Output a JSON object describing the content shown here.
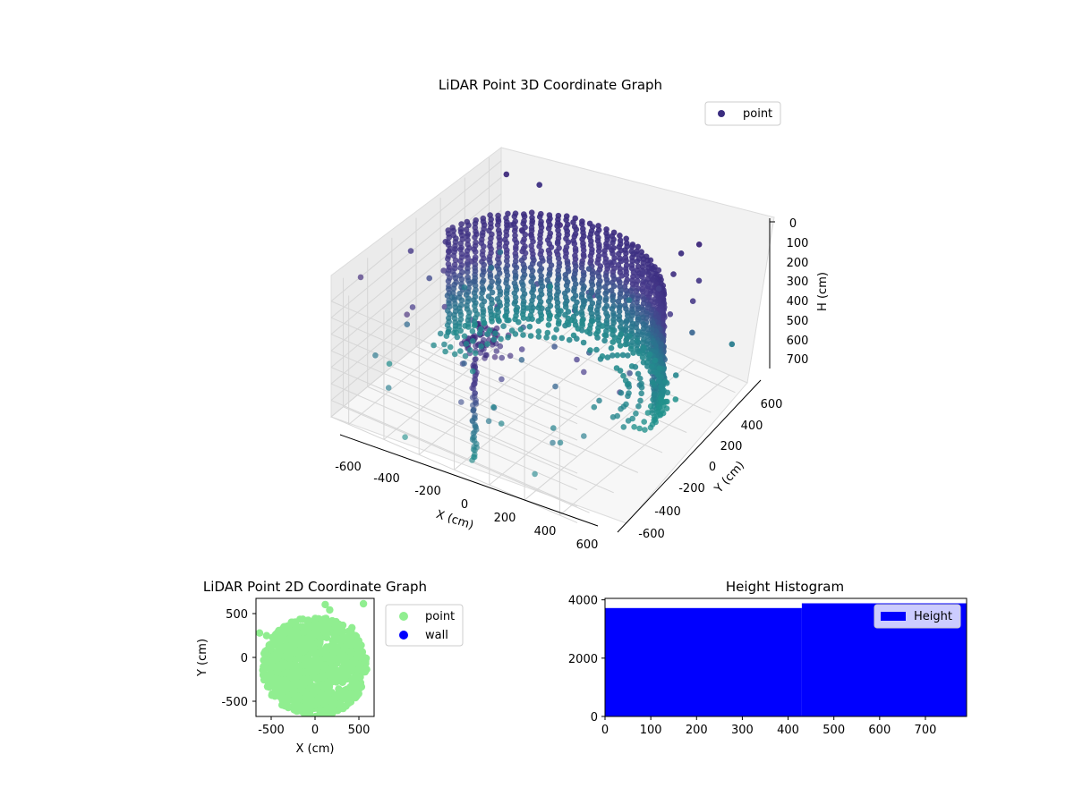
{
  "chart_data": [
    {
      "type": "scatter3d",
      "title": "LiDAR Point 3D Coordinate Graph",
      "xlabel": "X (cm)",
      "ylabel": "Y (cm)",
      "zlabel": "H (cm)",
      "x_ticks": [
        "-600",
        "-400",
        "-200",
        "0",
        "200",
        "400",
        "600"
      ],
      "y_ticks": [
        "-600",
        "-400",
        "-200",
        "0",
        "200",
        "400",
        "600"
      ],
      "z_ticks": [
        "0",
        "100",
        "200",
        "300",
        "400",
        "500",
        "600",
        "700"
      ],
      "xlim": [
        -700,
        700
      ],
      "ylim": [
        -700,
        700
      ],
      "zlim": [
        0,
        780
      ],
      "z_inverted": true,
      "legend": {
        "entries": [
          "point"
        ],
        "position": "top-right"
      },
      "colors": {
        "point": "#3b2d80",
        "colormap": "viridis"
      },
      "grid": true
    },
    {
      "type": "scatter",
      "title": "LiDAR Point 2D Coordinate Graph",
      "xlabel": "X (cm)",
      "ylabel": "Y (cm)",
      "x_ticks": [
        "-500",
        "0",
        "500"
      ],
      "y_ticks": [
        "500",
        "0",
        "-500"
      ],
      "xlim": [
        -680,
        650
      ],
      "ylim": [
        -680,
        650
      ],
      "legend": {
        "entries": [
          "point",
          "wall"
        ],
        "position": "outside-right"
      },
      "series": [
        {
          "name": "point",
          "color": "#90ee90"
        },
        {
          "name": "wall",
          "color": "#0000ff"
        }
      ],
      "grid": false
    },
    {
      "type": "bar",
      "title": "Height Histogram",
      "x_ticks": [
        "0",
        "100",
        "200",
        "300",
        "400",
        "500",
        "600",
        "700"
      ],
      "y_ticks": [
        "0",
        "2000",
        "4000"
      ],
      "xlim": [
        0,
        790
      ],
      "ylim": [
        0,
        4050
      ],
      "bins": [
        {
          "x0": 0,
          "x1": 430,
          "count": 3720
        },
        {
          "x0": 430,
          "x1": 790,
          "count": 3880
        }
      ],
      "legend": {
        "entries": [
          "Height"
        ],
        "position": "top-right"
      },
      "colors": {
        "bar": "#0000ff"
      },
      "grid": false
    }
  ]
}
